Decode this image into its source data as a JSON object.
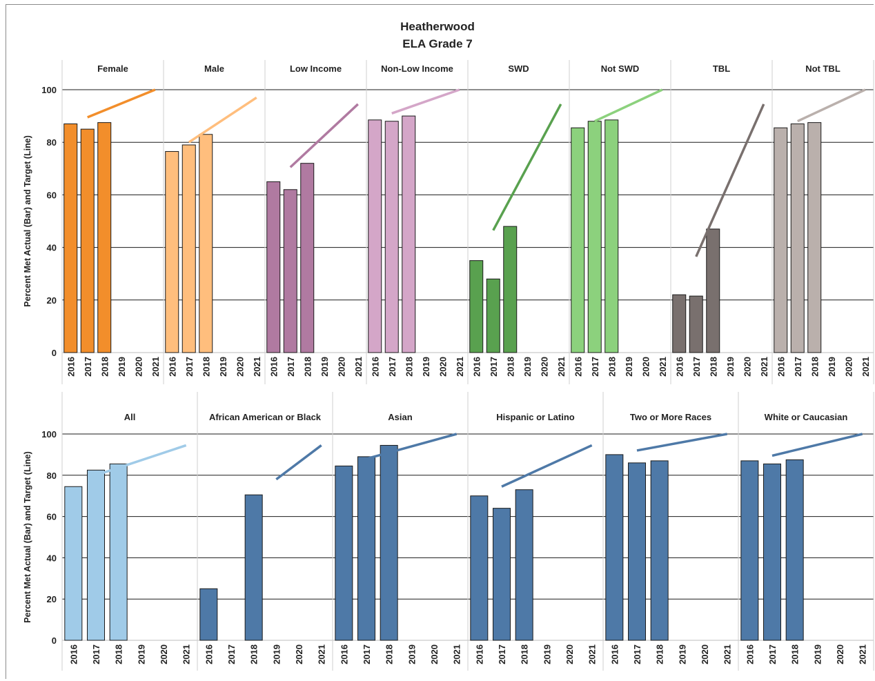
{
  "title": "Heatherwood",
  "subtitle": "ELA Grade 7",
  "chart_data": [
    {
      "type": "bar",
      "ylabel": "Percent Met Actual (Bar) and Target (Line)",
      "ylim": [
        0,
        100
      ],
      "yticks": [
        0,
        20,
        40,
        60,
        80,
        100
      ],
      "grid": true,
      "categories": [
        "2016",
        "2017",
        "2018",
        "2019",
        "2020",
        "2021"
      ],
      "panels": [
        {
          "name": "Female",
          "color": "#f28e2b",
          "bar_values": [
            87,
            85,
            87.5,
            null,
            null,
            null
          ],
          "target_line": {
            "from": [
              "2017",
              89.5
            ],
            "to": [
              "2021",
              100
            ]
          }
        },
        {
          "name": "Male",
          "color": "#ffbe7d",
          "bar_values": [
            76.5,
            79,
            83,
            null,
            null,
            null
          ],
          "target_line": {
            "from": [
              "2017",
              80
            ],
            "to": [
              "2021",
              97
            ]
          }
        },
        {
          "name": "Low Income",
          "color": "#b07aa1",
          "bar_values": [
            65,
            62,
            72,
            null,
            null,
            null
          ],
          "target_line": {
            "from": [
              "2017",
              70.5
            ],
            "to": [
              "2021",
              94.5
            ]
          }
        },
        {
          "name": "Non-Low Income",
          "color": "#d4a6c8",
          "bar_values": [
            88.5,
            88,
            90,
            null,
            null,
            null
          ],
          "target_line": {
            "from": [
              "2017",
              91
            ],
            "to": [
              "2021",
              100
            ]
          }
        },
        {
          "name": "SWD",
          "color": "#59a14f",
          "bar_values": [
            35,
            28,
            48,
            null,
            null,
            null
          ],
          "target_line": {
            "from": [
              "2017",
              46.5
            ],
            "to": [
              "2021",
              94.5
            ]
          }
        },
        {
          "name": "Not SWD",
          "color": "#8cd17d",
          "bar_values": [
            85.5,
            88,
            88.5,
            null,
            null,
            null
          ],
          "target_line": {
            "from": [
              "2017",
              88
            ],
            "to": [
              "2021",
              100
            ]
          }
        },
        {
          "name": "TBL",
          "color": "#79706e",
          "bar_values": [
            22,
            21.5,
            47,
            null,
            null,
            null
          ],
          "target_line": {
            "from": [
              "2017",
              36.5
            ],
            "to": [
              "2021",
              94.5
            ]
          }
        },
        {
          "name": "Not TBL",
          "color": "#bab0ac",
          "bar_values": [
            85.5,
            87,
            87.5,
            null,
            null,
            null
          ],
          "target_line": {
            "from": [
              "2017",
              88
            ],
            "to": [
              "2021",
              100
            ]
          }
        }
      ]
    },
    {
      "type": "bar",
      "ylabel": "Percent Met Actual (Bar) and Target (Line)",
      "ylim": [
        0,
        100
      ],
      "yticks": [
        0,
        20,
        40,
        60,
        80,
        100
      ],
      "grid": true,
      "categories": [
        "2016",
        "2017",
        "2018",
        "2019",
        "2020",
        "2021"
      ],
      "panels": [
        {
          "name": "All",
          "color": "#a0cbe8",
          "bar_values": [
            74.5,
            82.5,
            85.5,
            null,
            null,
            null
          ],
          "target_line": {
            "from": [
              "2017",
              80
            ],
            "to": [
              "2021",
              94.5
            ]
          }
        },
        {
          "name": "African American or Black",
          "color": "#4e79a7",
          "bar_values": [
            25,
            null,
            70.5,
            null,
            null,
            null
          ],
          "target_line": {
            "from": [
              "2019",
              78
            ],
            "to": [
              "2021",
              94.5
            ]
          }
        },
        {
          "name": "Asian",
          "color": "#4e79a7",
          "bar_values": [
            84.5,
            89,
            94.5,
            null,
            null,
            null
          ],
          "target_line": {
            "from": [
              "2017",
              88
            ],
            "to": [
              "2021",
              100
            ]
          }
        },
        {
          "name": "Hispanic or Latino",
          "color": "#4e79a7",
          "bar_values": [
            70,
            64,
            73,
            null,
            null,
            null
          ],
          "target_line": {
            "from": [
              "2017",
              74.5
            ],
            "to": [
              "2021",
              94.5
            ]
          }
        },
        {
          "name": "Two or More Races",
          "color": "#4e79a7",
          "bar_values": [
            90,
            86,
            87,
            null,
            null,
            null
          ],
          "target_line": {
            "from": [
              "2017",
              92
            ],
            "to": [
              "2021",
              100
            ]
          }
        },
        {
          "name": "White or Caucasian",
          "color": "#4e79a7",
          "bar_values": [
            87,
            85.5,
            87.5,
            null,
            null,
            null
          ],
          "target_line": {
            "from": [
              "2017",
              89.5
            ],
            "to": [
              "2021",
              100
            ]
          }
        }
      ]
    }
  ]
}
